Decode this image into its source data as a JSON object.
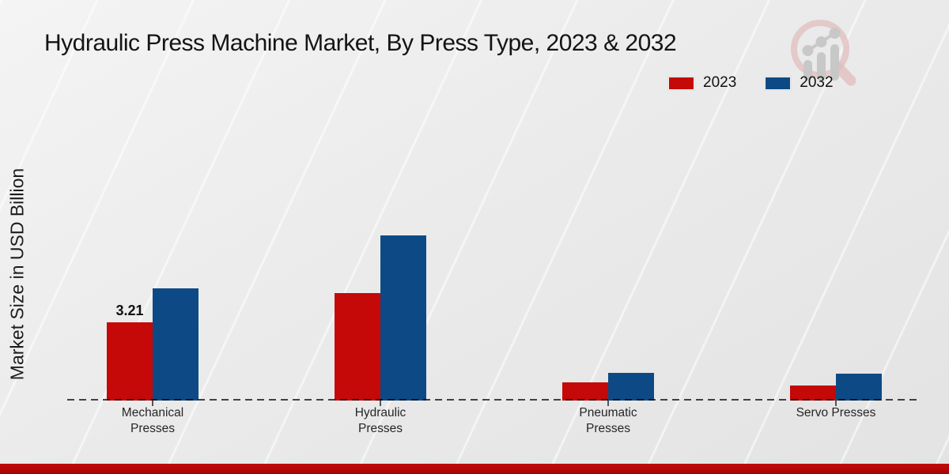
{
  "title": "Hydraulic Press Machine Market, By Press Type, 2023 & 2032",
  "y_axis_label": "Market Size in USD Billion",
  "legend": {
    "items": [
      {
        "label": "2023",
        "color": "#c50808"
      },
      {
        "label": "2032",
        "color": "#0d4a85"
      }
    ]
  },
  "colors": {
    "series_2023": "#c50808",
    "series_2032": "#0d4a85",
    "footer_strip": "#b30808",
    "baseline": "#474747"
  },
  "chart_data": {
    "type": "bar",
    "title": "Hydraulic Press Machine Market, By Press Type, 2023 & 2032",
    "xlabel": "",
    "ylabel": "Market Size in USD Billion",
    "categories": [
      "Mechanical Presses",
      "Hydraulic Presses",
      "Pneumatic Presses",
      "Servo Presses"
    ],
    "series": [
      {
        "name": "2023",
        "color": "#c50808",
        "values": [
          3.21,
          4.41,
          0.75,
          0.62
        ],
        "labels": [
          "3.21",
          "",
          "",
          ""
        ]
      },
      {
        "name": "2032",
        "color": "#0d4a85",
        "values": [
          4.6,
          6.78,
          1.13,
          1.1
        ],
        "labels": [
          "",
          "",
          "",
          ""
        ]
      }
    ],
    "ylim": [
      0,
      7.5
    ],
    "grid": false,
    "y_axis_ticks_visible": false,
    "baseline_style": "dashed",
    "legend_position": "top-right",
    "value_label_annotations": [
      {
        "category": "Mechanical Presses",
        "series": "2023",
        "text": "3.21"
      }
    ]
  }
}
